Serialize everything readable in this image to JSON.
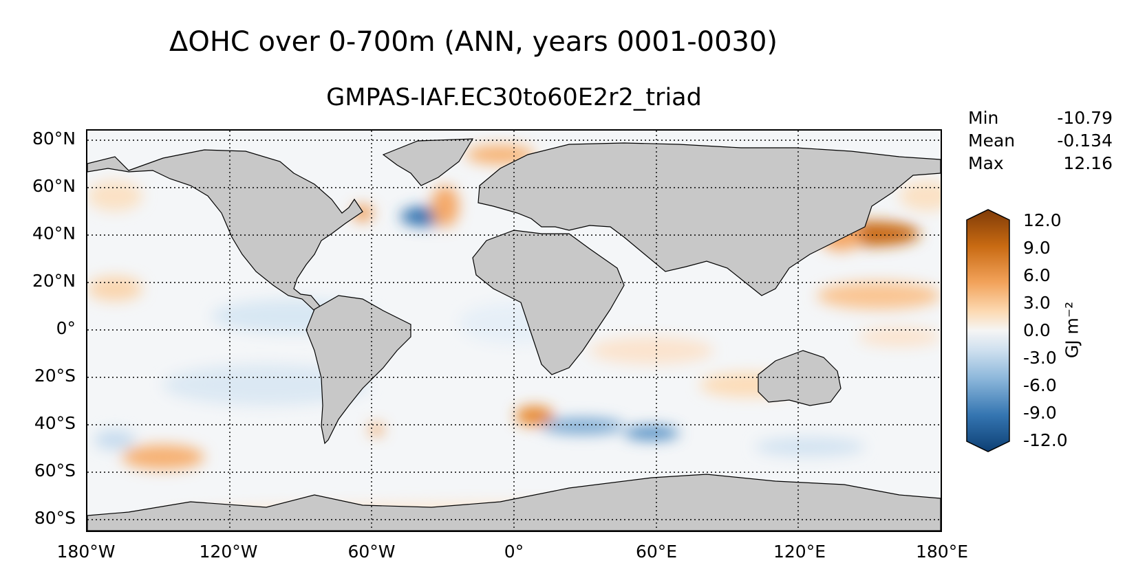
{
  "title": "ΔOHC over 0-700m (ANN, years 0001-0030)",
  "subtitle": "GMPAS-IAF.EC30to60E2r2_triad",
  "stats": [
    {
      "label": "Min",
      "value": "-10.79"
    },
    {
      "label": "Mean",
      "value": "-0.134"
    },
    {
      "label": "Max",
      "value": "12.16"
    }
  ],
  "colorbar": {
    "unit": "GJ m⁻²",
    "ticks": [
      "12.0",
      "9.0",
      "6.0",
      "3.0",
      "0.0",
      "-3.0",
      "-6.0",
      "-9.0",
      "-12.0"
    ],
    "range": [
      -12.0,
      12.0
    ],
    "colors": {
      "negative": "#0d4a87",
      "neutral": "#f5f5f5",
      "positive": "#7f3b08",
      "land": "#c8c8c8"
    }
  },
  "map": {
    "projection": "plate-carree",
    "lat_labels": [
      "80°N",
      "60°N",
      "40°N",
      "20°N",
      "0°",
      "20°S",
      "40°S",
      "60°S",
      "80°S"
    ],
    "lon_labels": [
      "180°W",
      "120°W",
      "60°W",
      "0°",
      "60°E",
      "120°E",
      "180°E"
    ],
    "gridlines": "dotted"
  }
}
